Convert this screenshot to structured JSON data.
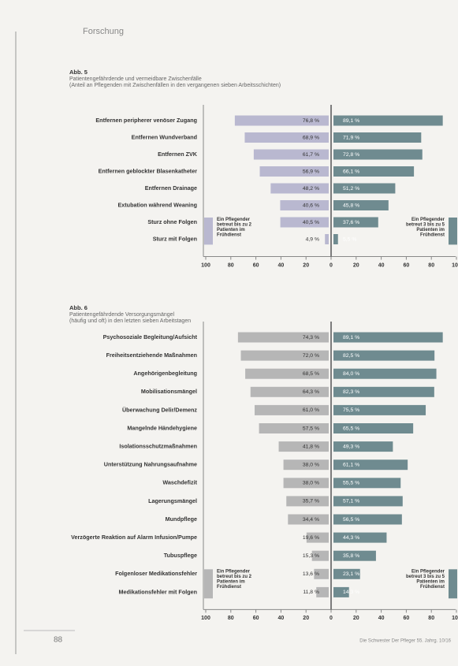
{
  "header": "Forschung",
  "footer": {
    "page": "88",
    "source": "Die Schwester Der Pfleger 55. Jahrg. 10/16"
  },
  "chart_data": [
    {
      "type": "butterfly",
      "title": "Abb. 5",
      "subtitle": [
        "Patientengefährdende und vermeidbare Zwischenfälle",
        "(Anteil an Pflegenden mit Zwischenfällen in den vergangenen sieben Arbeitsschichten)"
      ],
      "categories": [
        "Entfernen peripherer venöser Zugang",
        "Entfernen Wundverband",
        "Entfernen ZVK",
        "Entfernen geblockter Blasenkatheter",
        "Entfernen Drainage",
        "Extubation während Weaning",
        "Sturz ohne Folgen",
        "Sturz mit Folgen"
      ],
      "series": [
        {
          "name": "Ein Pflegender betreut bis zu 2 Patienten im Frühdienst",
          "side": "left",
          "color": "#b9b8d0",
          "values": [
            76.8,
            68.9,
            61.7,
            56.9,
            48.2,
            40.6,
            40.5,
            4.9
          ],
          "value_labels": [
            "76,8 %",
            "68,9 %",
            "61,7 %",
            "56,9 %",
            "48,2 %",
            "40,6 %",
            "40,5 %",
            "4,9 %"
          ]
        },
        {
          "name": "Ein Pflegender betreut 3 bis zu 5 Patienten im Frühdienst",
          "side": "right",
          "color": "#6f8b90",
          "values": [
            89.1,
            71.9,
            72.8,
            66.1,
            51.2,
            45.8,
            37.6,
            5.5
          ],
          "value_labels": [
            "89,1 %",
            "71,9 %",
            "72,8 %",
            "66,1 %",
            "51,2 %",
            "45,8 %",
            "37,6 %",
            "5,5 %"
          ]
        }
      ],
      "xlim": [
        -100,
        100
      ],
      "xticks": [
        {
          "value": -100,
          "label": "100"
        },
        {
          "value": -80,
          "label": "80"
        },
        {
          "value": -60,
          "label": "60"
        },
        {
          "value": -40,
          "label": "40"
        },
        {
          "value": -20,
          "label": "20"
        },
        0,
        20,
        40,
        60,
        80,
        100
      ]
    },
    {
      "type": "butterfly",
      "title": "Abb. 6",
      "subtitle": [
        "Patientengefährdende Versorgungsmängel",
        "(häufig und oft) in den letzten sieben Arbeitstagen"
      ],
      "categories": [
        "Psychosoziale Begleitung/Aufsicht",
        "Freiheitsentziehende Maßnahmen",
        "Angehörigenbegleitung",
        "Mobilisationsmängel",
        "Überwachung Delir/Demenz",
        "Mangelnde Händehygiene",
        "Isolationsschutzmaßnahmen",
        "Unterstützung Nahrungsaufnahme",
        "Waschdefizit",
        "Lagerungsmängel",
        "Mundpflege",
        "Verzögerte Reaktion auf Alarm Infusion/Pumpe",
        "Tubuspflege",
        "Folgenloser Medikationsfehler",
        "Medikationsfehler mit Folgen"
      ],
      "series": [
        {
          "name": "Ein Pflegender betreut bis zu 2 Patienten im Frühdienst",
          "side": "left",
          "color": "#b6b6b6",
          "values": [
            74.3,
            72.0,
            68.5,
            64.3,
            61.0,
            57.5,
            41.8,
            38.0,
            38.0,
            35.7,
            34.4,
            19.6,
            15.3,
            13.6,
            11.8
          ],
          "value_labels": [
            "74,3 %",
            "72,0 %",
            "68,5 %",
            "64,3 %",
            "61,0 %",
            "57,5 %",
            "41,8 %",
            "38,0 %",
            "38,0 %",
            "35,7 %",
            "34,4 %",
            "19,6 %",
            "15,3 %",
            "13,6 %",
            "11,8 %"
          ]
        },
        {
          "name": "Ein Pflegender betreut 3 bis zu 5 Patienten im Frühdienst",
          "side": "right",
          "color": "#6f8b90",
          "values": [
            89.1,
            82.5,
            84.0,
            82.3,
            75.5,
            65.5,
            49.3,
            61.1,
            55.5,
            57.1,
            56.5,
            44.3,
            35.8,
            23.1,
            14.3
          ],
          "value_labels": [
            "89,1 %",
            "82,5 %",
            "84,0 %",
            "82,3 %",
            "75,5 %",
            "65,5 %",
            "49,3 %",
            "61,1 %",
            "55,5 %",
            "57,1 %",
            "56,5 %",
            "44,3 %",
            "35,8 %",
            "23,1 %",
            "14,3 %"
          ]
        }
      ],
      "xlim": [
        -100,
        100
      ],
      "xticks": [
        {
          "value": -100,
          "label": "100"
        },
        {
          "value": -80,
          "label": "80"
        },
        {
          "value": -60,
          "label": "60"
        },
        {
          "value": -40,
          "label": "40"
        },
        {
          "value": -20,
          "label": "20"
        },
        0,
        20,
        40,
        60,
        80,
        100
      ]
    }
  ]
}
